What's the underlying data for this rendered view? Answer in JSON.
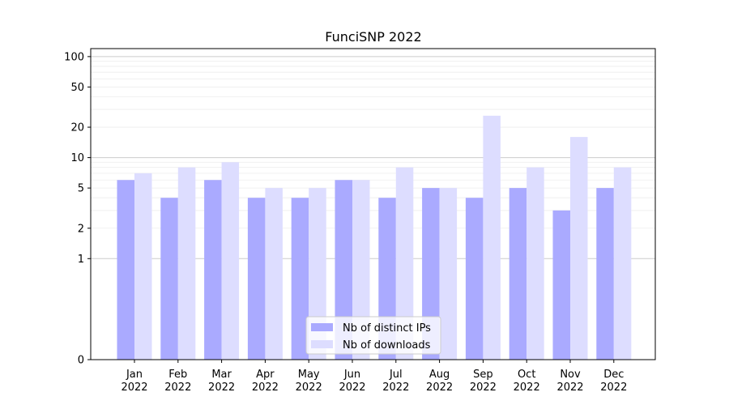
{
  "chart_data": {
    "type": "bar",
    "title": "FunciSNP 2022",
    "xlabel": "",
    "ylabel": "",
    "y_scale": "symlog",
    "ylim": [
      0,
      120
    ],
    "y_ticks": [
      0,
      1,
      2,
      5,
      10,
      20,
      50,
      100
    ],
    "categories": [
      "Jan\n2022",
      "Feb\n2022",
      "Mar\n2022",
      "Apr\n2022",
      "May\n2022",
      "Jun\n2022",
      "Jul\n2022",
      "Aug\n2022",
      "Sep\n2022",
      "Oct\n2022",
      "Nov\n2022",
      "Dec\n2022"
    ],
    "series": [
      {
        "name": "Nb of distinct IPs",
        "color": "#aaaaff",
        "values": [
          6,
          4,
          6,
          4,
          4,
          6,
          4,
          5,
          4,
          5,
          3,
          5
        ]
      },
      {
        "name": "Nb of downloads",
        "color": "#ddddff",
        "values": [
          7,
          8,
          9,
          5,
          5,
          6,
          8,
          5,
          26,
          8,
          16,
          8
        ]
      }
    ],
    "grid": true,
    "legend": "lower-center"
  }
}
